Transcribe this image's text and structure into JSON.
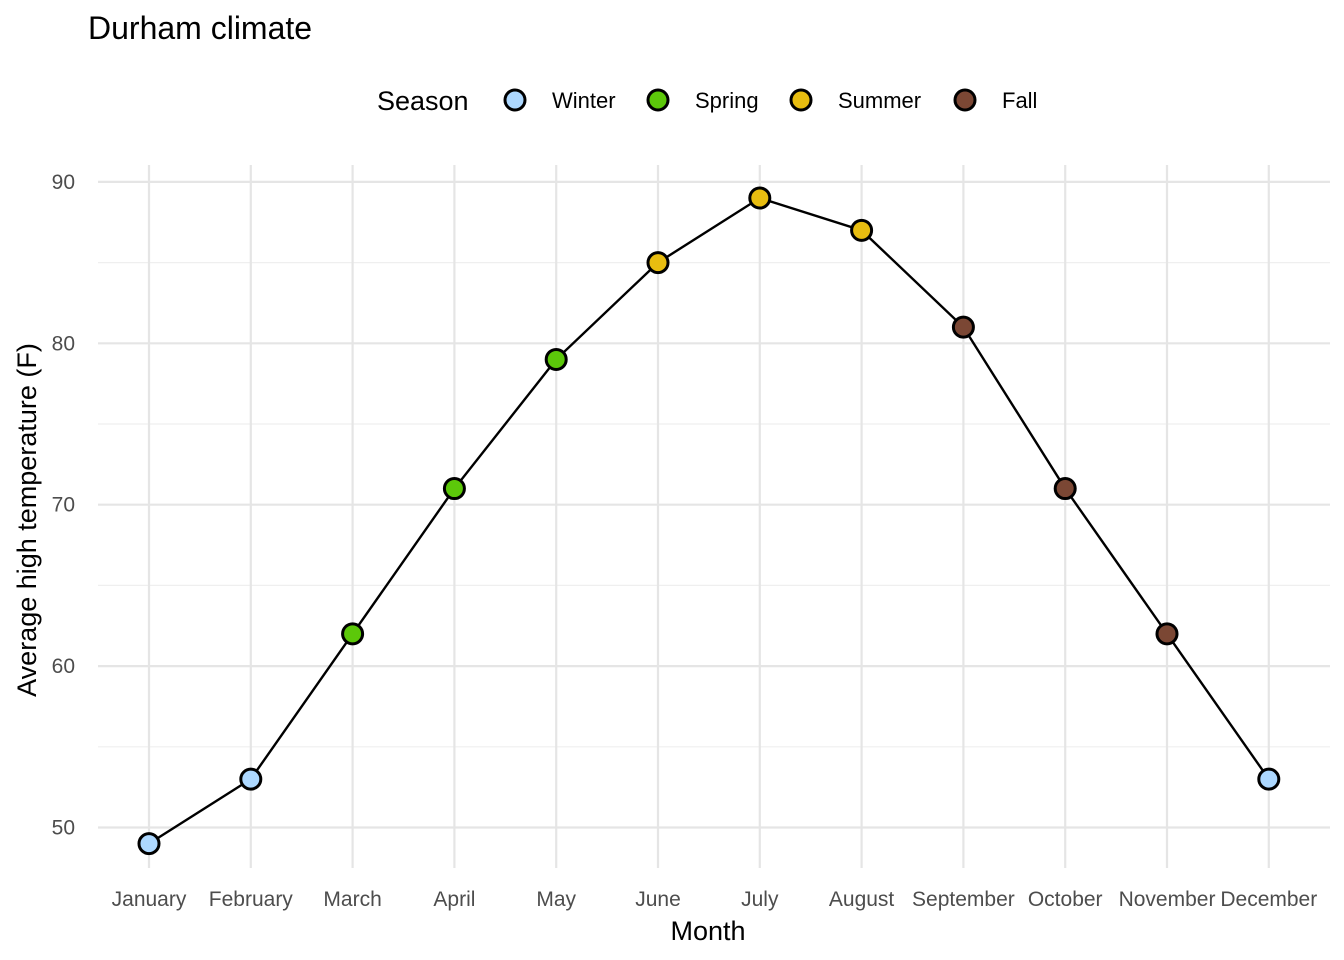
{
  "chart_data": {
    "type": "line",
    "title": "Durham climate",
    "xlabel": "Month",
    "ylabel": "Average high temperature (F)",
    "categories": [
      "January",
      "February",
      "March",
      "April",
      "May",
      "June",
      "July",
      "August",
      "September",
      "October",
      "November",
      "December"
    ],
    "values": [
      49,
      53,
      62,
      71,
      79,
      85,
      89,
      87,
      81,
      71,
      62,
      53
    ],
    "season": [
      "Winter",
      "Winter",
      "Spring",
      "Spring",
      "Spring",
      "Summer",
      "Summer",
      "Summer",
      "Fall",
      "Fall",
      "Fall",
      "Winter"
    ],
    "ylim": [
      48,
      91
    ],
    "yticks": [
      50,
      60,
      70,
      80,
      90
    ],
    "grid": true,
    "legend": {
      "title": "Season",
      "position": "top",
      "entries": [
        {
          "name": "Winter",
          "color": "#add8ff"
        },
        {
          "name": "Spring",
          "color": "#5cc80a"
        },
        {
          "name": "Summer",
          "color": "#e8bd10"
        },
        {
          "name": "Fall",
          "color": "#7b4734"
        }
      ]
    }
  }
}
